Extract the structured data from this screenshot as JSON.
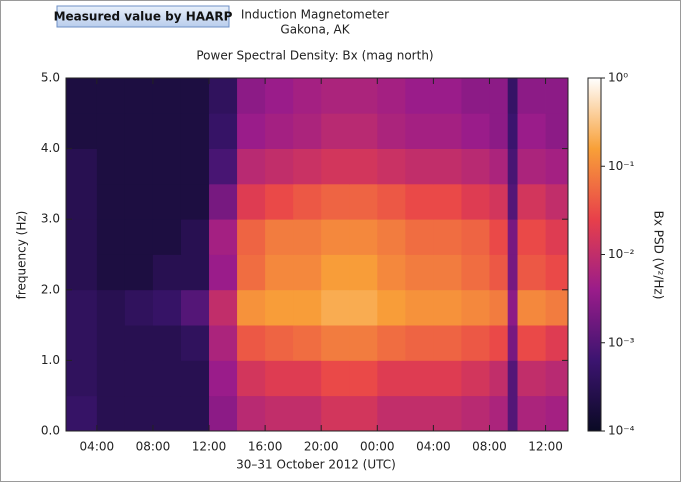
{
  "chart_data": {
    "type": "heatmap",
    "annotation": "Measured value by HAARP",
    "title": "Induction Magnetometer",
    "subtitle": "Gakona, AK",
    "plot_title": "Power Spectral Density: Bx (mag north)",
    "x_label": "30–31 October 2012 (UTC)",
    "y_label": "frequency (Hz)",
    "color_label": "Bx PSD (V²/Hz)",
    "xlim": [
      1.8,
      37.6
    ],
    "xticks": [
      {
        "value": 4,
        "label": "04:00"
      },
      {
        "value": 8,
        "label": "08:00"
      },
      {
        "value": 12,
        "label": "12:00"
      },
      {
        "value": 16,
        "label": "16:00"
      },
      {
        "value": 20,
        "label": "20:00"
      },
      {
        "value": 24,
        "label": "00:00"
      },
      {
        "value": 28,
        "label": "04:00"
      },
      {
        "value": 32,
        "label": "08:00"
      },
      {
        "value": 36,
        "label": "12:00"
      }
    ],
    "ylim": [
      0,
      5
    ],
    "yticks": [
      {
        "value": 0,
        "label": "0.0"
      },
      {
        "value": 1,
        "label": "1.0"
      },
      {
        "value": 2,
        "label": "2.0"
      },
      {
        "value": 3,
        "label": "3.0"
      },
      {
        "value": 4,
        "label": "4.0"
      },
      {
        "value": 5,
        "label": "5.0"
      }
    ],
    "x_bins": [
      1.8,
      4,
      6,
      8,
      10,
      12,
      14,
      16,
      18,
      20,
      22,
      24,
      26,
      28,
      30,
      32,
      33.3,
      34,
      36,
      37.6
    ],
    "y_bins": [
      0,
      0.5,
      1,
      1.5,
      2,
      2.5,
      3,
      3.5,
      4,
      4.5,
      5
    ],
    "z": [
      [
        0.0005,
        0.0003,
        0.0003,
        0.0003,
        0.0003,
        0.003,
        0.008,
        0.01,
        0.01,
        0.015,
        0.015,
        0.01,
        0.01,
        0.01,
        0.008,
        0.006,
        0.001,
        0.006,
        0.005
      ],
      [
        0.0004,
        0.0003,
        0.0003,
        0.0003,
        0.0003,
        0.004,
        0.015,
        0.02,
        0.02,
        0.03,
        0.03,
        0.02,
        0.02,
        0.02,
        0.015,
        0.01,
        0.001,
        0.01,
        0.008
      ],
      [
        0.0004,
        0.0003,
        0.0003,
        0.0003,
        0.0004,
        0.006,
        0.04,
        0.05,
        0.06,
        0.08,
        0.08,
        0.06,
        0.05,
        0.05,
        0.04,
        0.03,
        0.002,
        0.03,
        0.02
      ],
      [
        0.0004,
        0.0003,
        0.0004,
        0.0005,
        0.001,
        0.01,
        0.12,
        0.15,
        0.15,
        0.2,
        0.2,
        0.15,
        0.12,
        0.12,
        0.1,
        0.08,
        0.003,
        0.1,
        0.08
      ],
      [
        0.0003,
        0.0002,
        0.0002,
        0.0003,
        0.0003,
        0.004,
        0.06,
        0.1,
        0.1,
        0.15,
        0.15,
        0.1,
        0.08,
        0.08,
        0.06,
        0.04,
        0.002,
        0.04,
        0.03
      ],
      [
        0.0003,
        0.0002,
        0.0002,
        0.0002,
        0.0003,
        0.005,
        0.05,
        0.08,
        0.08,
        0.1,
        0.1,
        0.08,
        0.06,
        0.06,
        0.05,
        0.03,
        0.002,
        0.03,
        0.02
      ],
      [
        0.0003,
        0.0002,
        0.0002,
        0.0002,
        0.0002,
        0.002,
        0.02,
        0.03,
        0.04,
        0.05,
        0.05,
        0.04,
        0.03,
        0.03,
        0.02,
        0.015,
        0.001,
        0.015,
        0.01
      ],
      [
        0.0003,
        0.0002,
        0.0002,
        0.0002,
        0.0002,
        0.0008,
        0.008,
        0.01,
        0.012,
        0.015,
        0.015,
        0.012,
        0.01,
        0.01,
        0.008,
        0.006,
        0.0008,
        0.006,
        0.005
      ],
      [
        0.0002,
        0.0002,
        0.0002,
        0.0002,
        0.0002,
        0.0005,
        0.004,
        0.005,
        0.006,
        0.008,
        0.008,
        0.006,
        0.005,
        0.005,
        0.004,
        0.003,
        0.0006,
        0.004,
        0.003
      ],
      [
        0.0002,
        0.0002,
        0.0002,
        0.0002,
        0.0002,
        0.0004,
        0.003,
        0.004,
        0.005,
        0.006,
        0.006,
        0.005,
        0.004,
        0.004,
        0.003,
        0.003,
        0.0005,
        0.003,
        0.003
      ]
    ],
    "color_scale": "log",
    "colorlim": [
      0.0001,
      1
    ],
    "colorticks": [
      {
        "value": 0.0001,
        "label": "10⁻⁴"
      },
      {
        "value": 0.001,
        "label": "10⁻³"
      },
      {
        "value": 0.01,
        "label": "10⁻²"
      },
      {
        "value": 0.1,
        "label": "10⁻¹"
      },
      {
        "value": 1,
        "label": "10⁰"
      }
    ],
    "colormap": [
      "#0a0a24",
      "#3c1470",
      "#9a1c8a",
      "#e8404a",
      "#f8a038",
      "#ffffff"
    ]
  }
}
